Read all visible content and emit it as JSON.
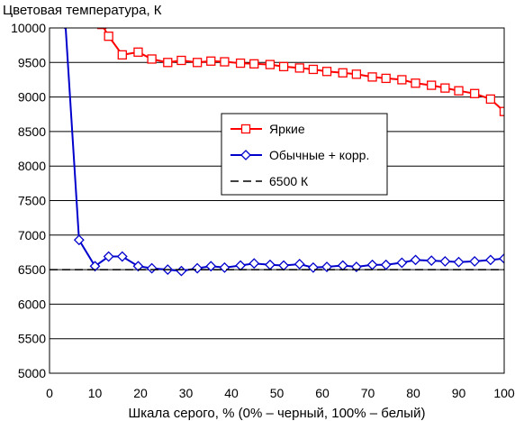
{
  "chart_data": {
    "type": "line",
    "title": "",
    "ylabel": "Цветовая температура, К",
    "xlabel": "Шкала серого, % (0% – черный, 100% – белый)",
    "xlim": [
      0,
      100
    ],
    "ylim": [
      5000,
      10000
    ],
    "xticks": [
      "0",
      "10",
      "20",
      "30",
      "40",
      "50",
      "60",
      "70",
      "80",
      "90",
      "100"
    ],
    "yticks": [
      "5000",
      "5500",
      "6000",
      "6500",
      "7000",
      "7500",
      "8000",
      "8500",
      "9000",
      "9500",
      "10000"
    ],
    "grid": "horizontal",
    "legend_position": "center-right",
    "series": [
      {
        "name": "Яркие",
        "color": "#ff0000",
        "marker": "square",
        "x": [
          11.5,
          13,
          16,
          19.5,
          22.5,
          26,
          29,
          32.5,
          35.5,
          38.5,
          42,
          45,
          48.5,
          51.5,
          55,
          58,
          61,
          64.5,
          67.5,
          71,
          74,
          77.5,
          80.5,
          84,
          87,
          90,
          93.5,
          97,
          100
        ],
        "values": [
          10050,
          9880,
          9610,
          9650,
          9550,
          9500,
          9530,
          9500,
          9520,
          9510,
          9490,
          9480,
          9470,
          9440,
          9420,
          9400,
          9370,
          9350,
          9330,
          9290,
          9270,
          9250,
          9200,
          9170,
          9130,
          9090,
          9050,
          8970,
          8790
        ]
      },
      {
        "name": "Обычные + корр.",
        "color": "#0000cc",
        "marker": "diamond",
        "x": [
          3.5,
          6.5,
          10,
          13,
          16,
          19.5,
          22.5,
          26,
          29,
          32.5,
          35.5,
          38.5,
          42,
          45,
          48.5,
          51.5,
          55,
          58,
          61,
          64.5,
          67.5,
          71,
          74,
          77.5,
          80.5,
          84,
          87,
          90,
          93.5,
          97,
          100
        ],
        "values": [
          10050,
          6930,
          6550,
          6690,
          6690,
          6550,
          6520,
          6500,
          6480,
          6520,
          6550,
          6530,
          6560,
          6590,
          6570,
          6560,
          6580,
          6530,
          6540,
          6560,
          6540,
          6570,
          6570,
          6600,
          6640,
          6630,
          6620,
          6610,
          6620,
          6640,
          6660
        ]
      },
      {
        "name": "6500 К",
        "color": "#000000",
        "marker": "none",
        "dash": true,
        "x": [
          0,
          100
        ],
        "values": [
          6500,
          6500
        ]
      }
    ]
  }
}
